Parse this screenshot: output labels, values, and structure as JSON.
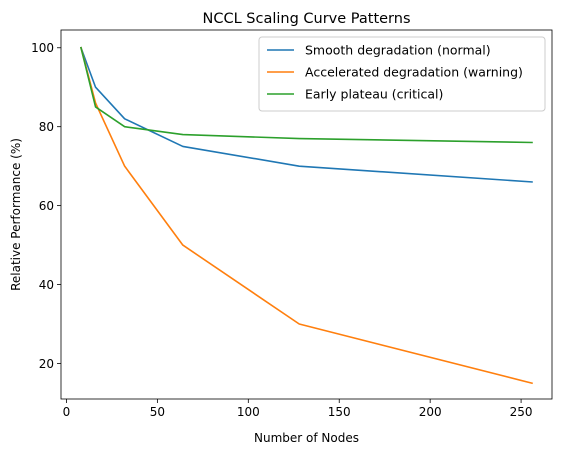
{
  "chart_data": {
    "type": "line",
    "title": "NCCL Scaling Curve Patterns",
    "xlabel": "Number of Nodes",
    "ylabel": "Relative Performance (%)",
    "xlim": [
      -3,
      267
    ],
    "ylim": [
      11,
      104.5
    ],
    "xticks": [
      0,
      50,
      100,
      150,
      200,
      250
    ],
    "yticks": [
      20,
      40,
      60,
      80,
      100
    ],
    "grid": false,
    "legend_position": "top-right",
    "x": [
      8,
      16,
      32,
      64,
      128,
      256
    ],
    "series": [
      {
        "name": "Smooth degradation (normal)",
        "color": "#1f77b4",
        "values": [
          100,
          90,
          82,
          75,
          70,
          66
        ]
      },
      {
        "name": "Accelerated degradation (warning)",
        "color": "#ff7f0e",
        "values": [
          100,
          86,
          70,
          50,
          30,
          15
        ]
      },
      {
        "name": "Early plateau (critical)",
        "color": "#2ca02c",
        "values": [
          100,
          85,
          80,
          78,
          77,
          76
        ]
      }
    ]
  }
}
